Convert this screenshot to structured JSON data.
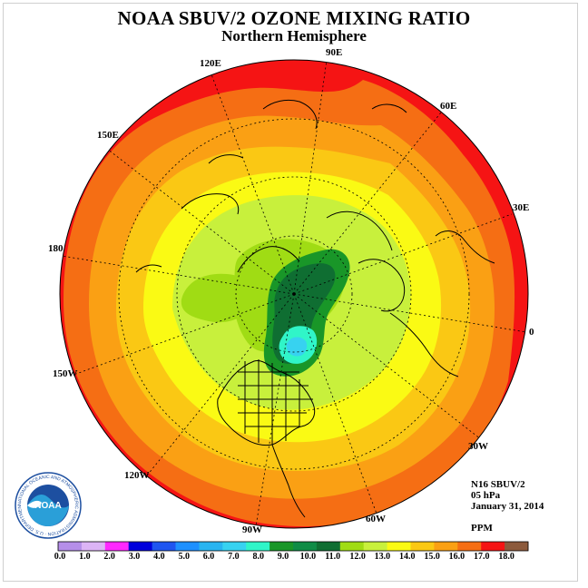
{
  "title": "NOAA SBUV/2 OZONE MIXING RATIO",
  "subtitle": "Northern Hemisphere",
  "longitude_labels": {
    "lon_90e": "90E",
    "lon_60e": "60E",
    "lon_120e": "120E",
    "lon_150e": "150E",
    "lon_30e": "30E",
    "lon_180": "180",
    "lon_0": "0",
    "lon_150w": "150W",
    "lon_30w": "30W",
    "lon_120w": "120W",
    "lon_60w": "60W",
    "lon_90w": "90W"
  },
  "info": {
    "instrument": "N16 SBUV/2",
    "level": "05 hPa",
    "date": "January 31, 2014",
    "units": "PPM"
  },
  "logo": {
    "text": "NOAA",
    "ring_text": "NATIONAL OCEANIC AND ATMOSPHERIC ADMINISTRATION · U.S. DEPARTMENT OF COMMERCE"
  },
  "colorbar": {
    "labels": [
      "0.0",
      "1.0",
      "2.0",
      "3.0",
      "4.0",
      "5.0",
      "6.0",
      "7.0",
      "8.0",
      "9.0",
      "10.0",
      "11.0",
      "12.0",
      "13.0",
      "14.0",
      "15.0",
      "16.0",
      "17.0",
      "18.0"
    ],
    "colors": [
      "#b58ee8",
      "#dcb4f5",
      "#ff28ff",
      "#0000dc",
      "#1f55f0",
      "#1e90ff",
      "#28b4f0",
      "#37d2f0",
      "#30f5c8",
      "#199628",
      "#0f8c46",
      "#0f6e32",
      "#a0dc14",
      "#c8f03c",
      "#fafa14",
      "#fac814",
      "#faa014",
      "#f56e14",
      "#f51414",
      "#8c5a3c"
    ]
  }
}
